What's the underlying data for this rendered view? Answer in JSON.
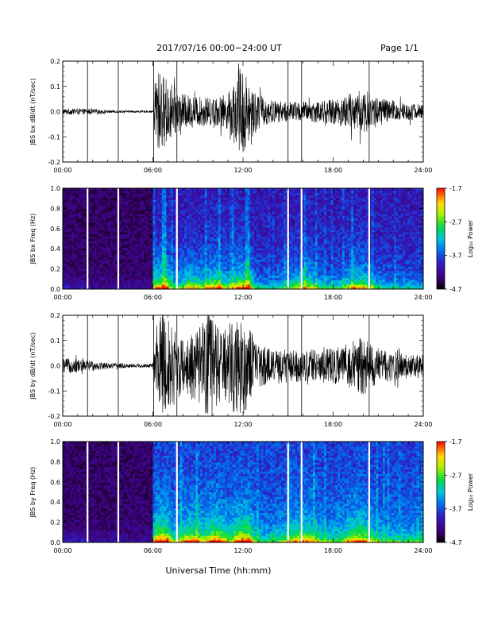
{
  "header": {
    "title": "2017/07/16  00:00−24:00 UT",
    "page": "Page 1/1"
  },
  "footer": {
    "xlabel": "Universal Time (hh:mm)"
  },
  "chart_data": [
    {
      "type": "line",
      "ylabel": "JBS bx dB/dt (nT/sec)",
      "xlim": [
        0,
        24
      ],
      "ylim": [
        -0.2,
        0.2
      ],
      "xticks": [
        "00:00",
        "06:00",
        "12:00",
        "18:00",
        "24:00"
      ],
      "yticks": [
        "-0.2",
        "-0.1",
        "0.0",
        "0.1",
        "0.2"
      ],
      "data_gap_markers_hours": [
        1.65,
        3.7,
        6.05,
        7.6,
        15.0,
        15.9,
        20.4
      ],
      "envelope": {
        "x": [
          0,
          1,
          2,
          3,
          4,
          5,
          6,
          6.2,
          6.6,
          7,
          7.5,
          8,
          9,
          10,
          11,
          11.5,
          12,
          12.3,
          13,
          14,
          15,
          16,
          17,
          18,
          19,
          20,
          21,
          22,
          23,
          24
        ],
        "y": [
          0.012,
          0.012,
          0.01,
          0.006,
          0.005,
          0.004,
          0.004,
          0.18,
          0.15,
          0.13,
          0.09,
          0.07,
          0.06,
          0.055,
          0.07,
          0.14,
          0.2,
          0.13,
          0.07,
          0.045,
          0.04,
          0.04,
          0.045,
          0.05,
          0.07,
          0.09,
          0.06,
          0.045,
          0.035,
          0.03
        ]
      }
    },
    {
      "type": "heatmap",
      "ylabel": "JBS bx Freq (Hz)",
      "xlim": [
        0,
        24
      ],
      "ylim": [
        0,
        1.0
      ],
      "xticks": [
        "00:00",
        "06:00",
        "12:00",
        "18:00",
        "24:00"
      ],
      "yticks": [
        "0.0",
        "0.2",
        "0.4",
        "0.6",
        "0.8",
        "1.0"
      ],
      "colorbar": {
        "label": "Log₁₀ Power",
        "ticks": [
          "-1.7",
          "-2.7",
          "-3.7",
          "-4.7"
        ],
        "range": [
          -4.7,
          -1.7
        ]
      },
      "data_gap_markers_hours": [
        1.65,
        3.7,
        7.6,
        15.0,
        15.9,
        20.4
      ]
    },
    {
      "type": "line",
      "ylabel": "JBS by dB/dt (nT/sec)",
      "xlim": [
        0,
        24
      ],
      "ylim": [
        -0.2,
        0.2
      ],
      "xticks": [
        "00:00",
        "06:00",
        "12:00",
        "18:00",
        "24:00"
      ],
      "yticks": [
        "-0.2",
        "-0.1",
        "0.0",
        "0.1",
        "0.2"
      ],
      "data_gap_markers_hours": [
        1.65,
        3.7,
        6.05,
        7.6,
        15.0,
        15.9,
        20.4
      ],
      "envelope": {
        "x": [
          0,
          1,
          2,
          3,
          4,
          5,
          6,
          6.3,
          6.8,
          7.5,
          8,
          9,
          9.6,
          10,
          10.5,
          11,
          11.5,
          12,
          12.5,
          13,
          14,
          15,
          16,
          17,
          18,
          19,
          20,
          21,
          22,
          23,
          24
        ],
        "y": [
          0.03,
          0.028,
          0.02,
          0.012,
          0.01,
          0.008,
          0.008,
          0.2,
          0.2,
          0.15,
          0.1,
          0.14,
          0.2,
          0.2,
          0.14,
          0.15,
          0.2,
          0.2,
          0.14,
          0.09,
          0.06,
          0.07,
          0.06,
          0.07,
          0.07,
          0.09,
          0.12,
          0.07,
          0.06,
          0.05,
          0.04
        ]
      }
    },
    {
      "type": "heatmap",
      "ylabel": "JBS by Freq (Hz)",
      "xlim": [
        0,
        24
      ],
      "ylim": [
        0,
        1.0
      ],
      "xticks": [
        "00:00",
        "06:00",
        "12:00",
        "18:00",
        "24:00"
      ],
      "yticks": [
        "0.0",
        "0.2",
        "0.4",
        "0.6",
        "0.8",
        "1.0"
      ],
      "colorbar": {
        "label": "Log₁₀ Power",
        "ticks": [
          "-1.7",
          "-2.7",
          "-3.7",
          "-4.7"
        ],
        "range": [
          -4.7,
          -1.7
        ]
      },
      "data_gap_markers_hours": [
        1.65,
        3.7,
        7.6,
        15.0,
        15.9,
        20.4
      ]
    }
  ]
}
